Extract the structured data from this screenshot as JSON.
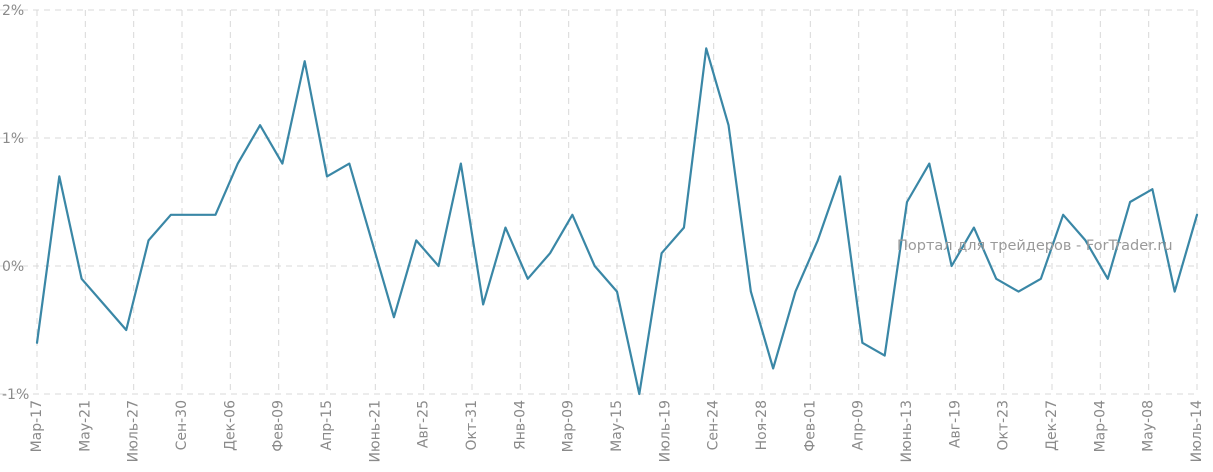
{
  "colors": {
    "line": "#3a87a6",
    "grid": "#d9d9d9",
    "tick": "#8a8a8a",
    "watermark": "#9a9a9a"
  },
  "watermark": "Портал для трейдеров - ForTrader.ru",
  "chart_data": {
    "type": "line",
    "ylim": [
      -1,
      2
    ],
    "yticks": [
      -1,
      0,
      1,
      2
    ],
    "ytick_labels": [
      "-1%",
      "0%",
      "1%",
      "2%"
    ],
    "grid": true,
    "x_ticks": [
      "Мар-17",
      "Мау-21",
      "Июль-27",
      "Сен-30",
      "Дек-06",
      "Фев-09",
      "Апр-15",
      "Июнь-21",
      "Авг-25",
      "Окт-31",
      "Янв-04",
      "Мар-09",
      "Мау-15",
      "Июль-19",
      "Сен-24",
      "Ноя-28",
      "Фев-01",
      "Апр-09",
      "Июнь-13",
      "Авг-19",
      "Окт-23",
      "Дек-27",
      "Мар-04",
      "Мау-08",
      "Июль-14"
    ],
    "series": [
      {
        "values": [
          -0.6,
          0.7,
          -0.1,
          -0.3,
          -0.5,
          0.2,
          0.4,
          0.4,
          0.4,
          0.8,
          1.1,
          0.8,
          1.6,
          0.7,
          0.8,
          0.2,
          -0.4,
          0.2,
          0.0,
          0.8,
          -0.3,
          0.3,
          -0.1,
          0.1,
          0.4,
          0.0,
          -0.2,
          -1.0,
          0.1,
          0.3,
          1.7,
          1.1,
          -0.2,
          -0.8,
          -0.2,
          0.2,
          0.7,
          -0.6,
          -0.7,
          0.5,
          0.8,
          0.0,
          0.3,
          -0.1,
          -0.2,
          -0.1,
          0.4,
          0.2,
          -0.1,
          0.5,
          0.6,
          -0.2,
          0.4
        ]
      }
    ]
  }
}
